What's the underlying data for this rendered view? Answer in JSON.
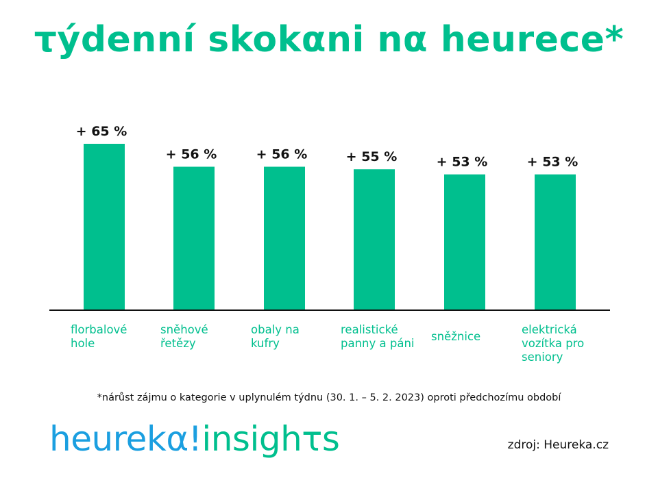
{
  "title": "τýdenní skokαni nα heurece*",
  "chart_data": {
    "type": "bar",
    "categories": [
      [
        "florbalové",
        "hole"
      ],
      [
        "sněhové",
        "řetězy"
      ],
      [
        "obaly na",
        "kufry"
      ],
      [
        "realistické",
        "panny a páni"
      ],
      [
        "sněžnice"
      ],
      [
        "elektrická",
        "vozítka pro",
        "seniory"
      ]
    ],
    "values": [
      65,
      56,
      56,
      55,
      53,
      53
    ],
    "value_labels": [
      "+ 65 %",
      "+ 56 %",
      "+ 56 %",
      "+ 55 %",
      "+ 53 %",
      "+ 53 %"
    ],
    "ylim": [
      0,
      65
    ],
    "bar_color": "#00bf8e",
    "grid": false,
    "legend": "none"
  },
  "footnote": "*nárůst zájmu o kategorie v uplynulém týdnu (30. 1. – 5. 2. 2023) oproti předchozímu období",
  "logo": {
    "part1": "heurekα!",
    "part2": "insighτs"
  },
  "source": "zdroj: Heureka.cz",
  "colors": {
    "accent": "#00bf8e",
    "brand_blue": "#1b9fe0",
    "text": "#111111"
  }
}
